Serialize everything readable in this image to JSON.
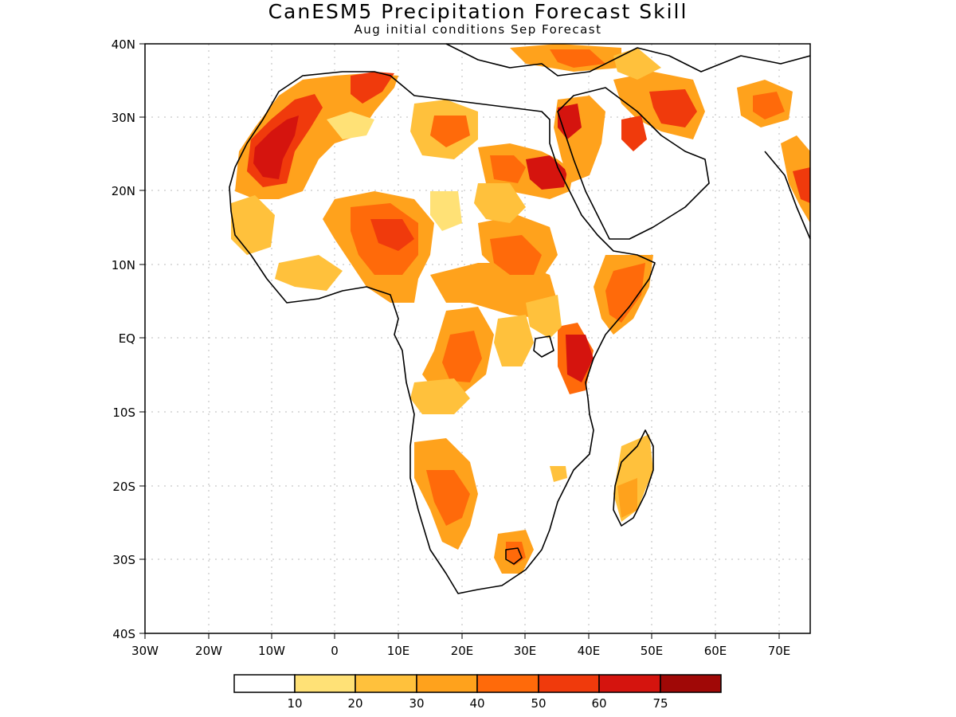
{
  "title": "CanESM5 Precipitation Forecast Skill",
  "subtitle": "Aug initial conditions  Sep Forecast",
  "y_ticks": [
    "40N",
    "30N",
    "20N",
    "10N",
    "EQ",
    "10S",
    "20S",
    "30S",
    "40S"
  ],
  "x_ticks": [
    "30W",
    "20W",
    "10W",
    "0",
    "10E",
    "20E",
    "30E",
    "40E",
    "50E",
    "60E",
    "70E"
  ],
  "colorbar": {
    "colors": [
      "#ffffff",
      "#ffe176",
      "#ffc13c",
      "#ffa21c",
      "#ff6a0a",
      "#f03a0c",
      "#d5140e",
      "#a00806"
    ],
    "labels": [
      "10",
      "20",
      "30",
      "40",
      "50",
      "60",
      "75"
    ]
  },
  "map_extent": {
    "lon": [
      -30,
      75
    ],
    "lat": [
      -40,
      40
    ]
  }
}
